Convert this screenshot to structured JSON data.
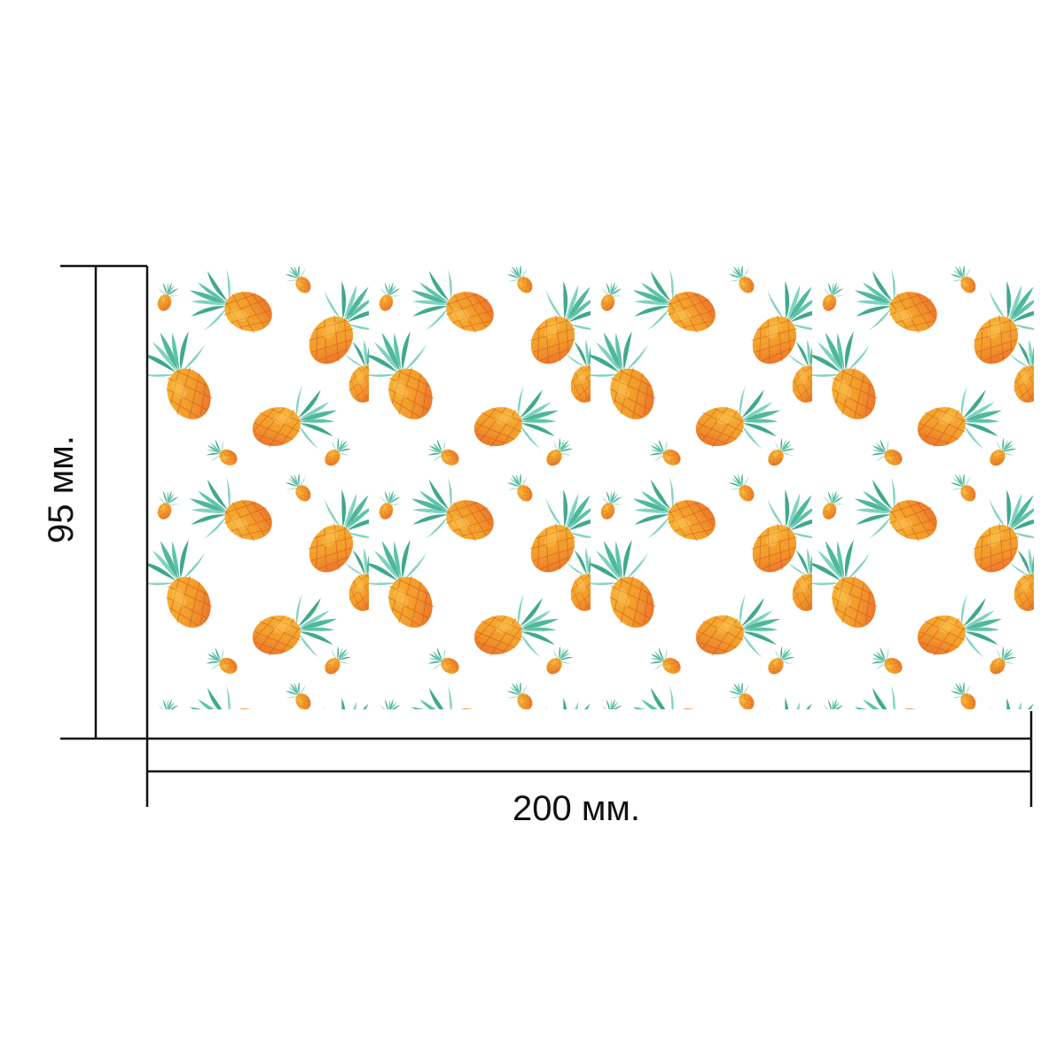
{
  "dimensions": {
    "width_label": "200 мм.",
    "height_label": "95 мм.",
    "line_color": "#111111"
  },
  "pattern": {
    "motif": "pineapple",
    "background_color": "#ffffff",
    "colors": {
      "fruit_light": "#f7b733",
      "fruit_mid": "#f39c2b",
      "fruit_dark": "#e8652b",
      "leaf_light": "#7fd3c0",
      "leaf_dark": "#3fa98c"
    }
  }
}
